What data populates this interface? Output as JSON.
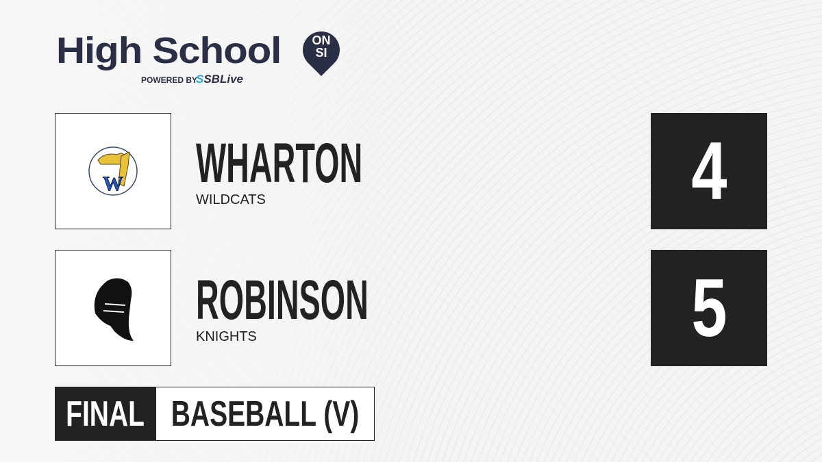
{
  "brand": {
    "title": "High School",
    "badge_line1": "ON",
    "badge_line2": "SI",
    "powered_by": "POWERED BY",
    "partner_prefix": "S",
    "partner": "SBLive",
    "navy": "#2b2f45",
    "partner_blue": "#29a8e0"
  },
  "teams": [
    {
      "name": "WHARTON",
      "mascot": "WILDCATS",
      "score": "4",
      "logo_icon": "wildcat-logo-icon"
    },
    {
      "name": "ROBINSON",
      "mascot": "KNIGHTS",
      "score": "5",
      "logo_icon": "knight-helmet-icon"
    }
  ],
  "game": {
    "status": "FINAL",
    "sport": "BASEBALL (V)"
  }
}
